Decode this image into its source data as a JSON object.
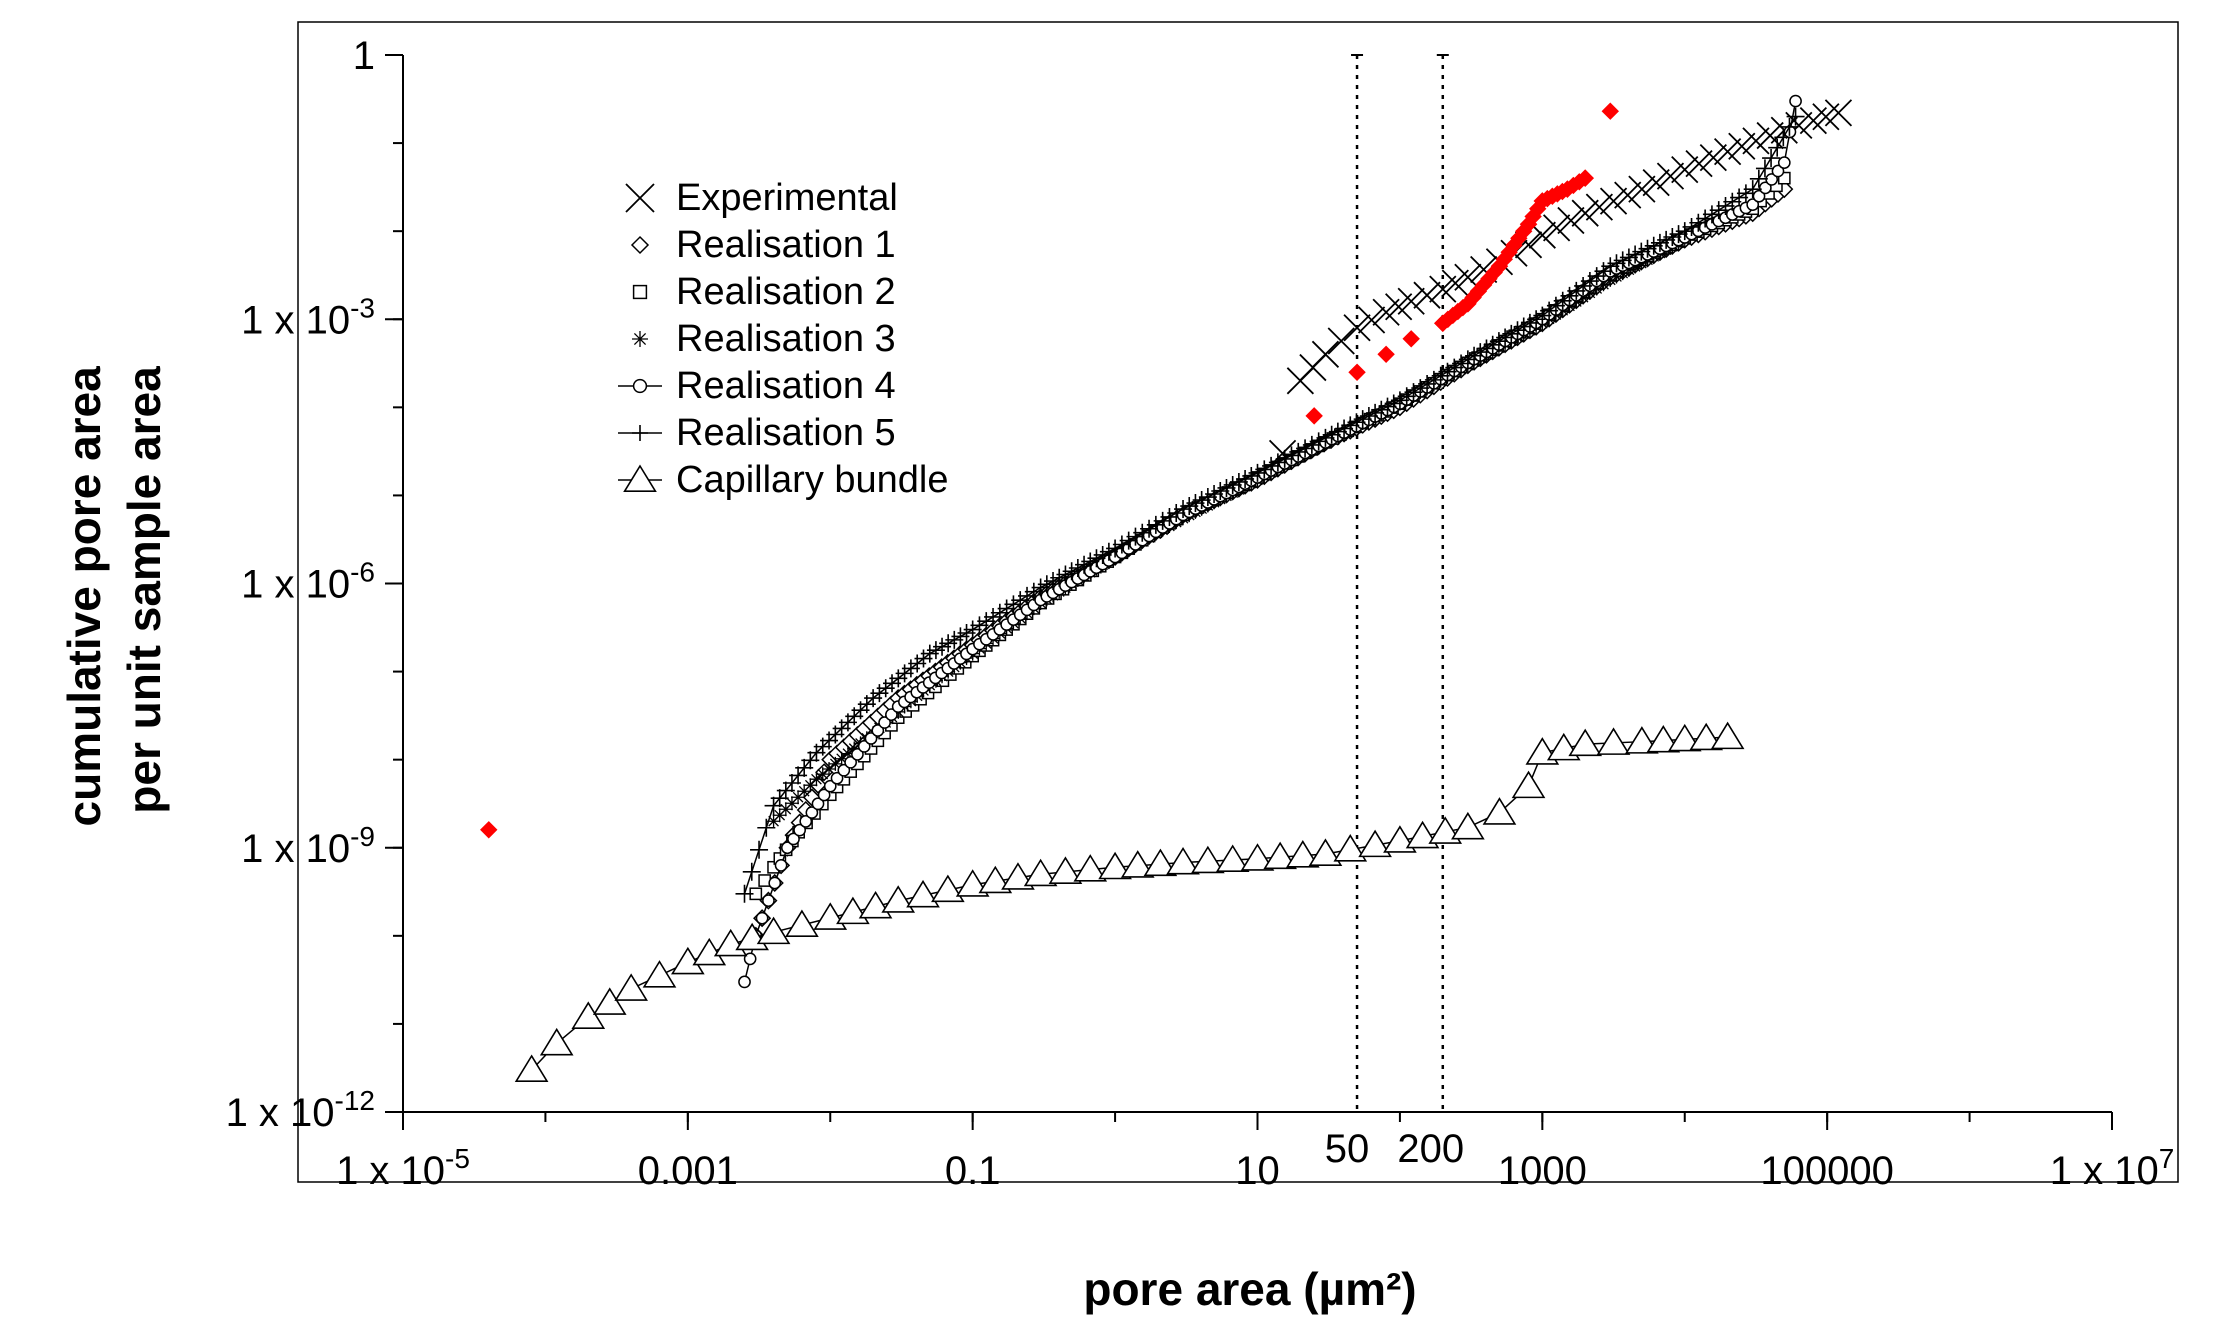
{
  "chart_data": {
    "type": "scatter",
    "title": "",
    "xlabel": "pore area (µm²)",
    "ylabel_lines": [
      "cumulative pore area",
      "per unit sample area"
    ],
    "x_scale": "log",
    "y_scale": "log",
    "xlim": [
      1e-05,
      10000000.0
    ],
    "ylim": [
      1e-12,
      1
    ],
    "grid": false,
    "legend_position": "upper-left",
    "x_ticks": [
      {
        "value": 1e-05,
        "base": "1 x 10",
        "exp": "-5"
      },
      {
        "value": 0.001,
        "label": "0.001"
      },
      {
        "value": 0.1,
        "label": "0.1"
      },
      {
        "value": 10,
        "label": "10"
      },
      {
        "value": 1000,
        "label": "1000"
      },
      {
        "value": 100000,
        "label": "100000"
      },
      {
        "value": 10000000.0,
        "base": "1 x 10",
        "exp": "7"
      }
    ],
    "y_ticks": [
      {
        "value": 1,
        "label": "1"
      },
      {
        "value": 0.001,
        "base": "1 x 10",
        "exp": "-3"
      },
      {
        "value": 1e-06,
        "base": "1 x 10",
        "exp": "-6"
      },
      {
        "value": 1e-09,
        "base": "1 x 10",
        "exp": "-9"
      },
      {
        "value": 1e-12,
        "base": "1 x 10",
        "exp": "-12"
      }
    ],
    "reference_lines": [
      {
        "x": 50,
        "label": "50"
      },
      {
        "x": 200,
        "label": "200"
      }
    ],
    "series": [
      {
        "name": "Experimental",
        "marker": "x",
        "x": [
          15,
          20,
          30,
          50,
          80,
          120,
          200,
          300,
          500,
          800,
          1000,
          2000,
          5000,
          10000,
          20000,
          50000,
          80000,
          120000
        ],
        "y": [
          3e-05,
          0.0002,
          0.0004,
          0.0008,
          0.0012,
          0.0016,
          0.0022,
          0.003,
          0.0045,
          0.007,
          0.009,
          0.016,
          0.03,
          0.05,
          0.08,
          0.14,
          0.18,
          0.22
        ]
      },
      {
        "name": "Realisation 1",
        "marker": "diamond",
        "x": [
          0.003,
          0.005,
          0.01,
          0.03,
          0.1,
          0.3,
          1,
          3,
          10,
          30,
          100,
          300,
          1000,
          3000,
          10000,
          30000,
          50000
        ],
        "y": [
          1e-10,
          1e-09,
          1e-08,
          5e-08,
          2e-07,
          7e-07,
          2e-06,
          6e-06,
          1.5e-05,
          4e-05,
          0.0001,
          0.0003,
          0.0009,
          0.003,
          0.008,
          0.016,
          0.03
        ]
      },
      {
        "name": "Realisation 2",
        "marker": "square",
        "x": [
          0.003,
          0.004,
          0.006,
          0.01,
          0.03,
          0.1,
          0.3,
          1,
          3,
          10,
          30,
          100,
          300,
          1000,
          3000,
          10000,
          30000,
          50000
        ],
        "y": [
          3e-10,
          6e-10,
          1.5e-09,
          4e-09,
          3e-08,
          1.5e-07,
          6e-07,
          2e-06,
          6e-06,
          1.6e-05,
          4e-05,
          0.00011,
          0.00032,
          0.001,
          0.0032,
          0.0085,
          0.018,
          0.04
        ]
      },
      {
        "name": "Realisation 3",
        "marker": "asterisk",
        "x": [
          0.004,
          0.008,
          0.02,
          0.05,
          0.1,
          0.3,
          1,
          3,
          10,
          30,
          100,
          300,
          1000,
          3000,
          10000
        ],
        "y": [
          2e-09,
          6e-09,
          2e-08,
          7e-08,
          1.6e-07,
          6e-07,
          2e-06,
          5.5e-06,
          1.5e-05,
          4e-05,
          0.00011,
          0.0003,
          0.0009,
          0.0028,
          0.008
        ]
      },
      {
        "name": "Realisation 4",
        "marker": "circle-line",
        "x": [
          0.0025,
          0.003,
          0.005,
          0.01,
          0.03,
          0.1,
          0.3,
          1,
          3,
          10,
          30,
          100,
          300,
          1000,
          3000,
          10000,
          30000,
          50000,
          60000
        ],
        "y": [
          3e-11,
          1e-10,
          1e-09,
          5e-09,
          4e-08,
          1.8e-07,
          6.5e-07,
          2e-06,
          6e-06,
          1.6e-05,
          4e-05,
          0.00011,
          0.00032,
          0.001,
          0.0035,
          0.0085,
          0.02,
          0.06,
          0.3
        ]
      },
      {
        "name": "Realisation 5",
        "marker": "plus-line",
        "x": [
          0.0025,
          0.004,
          0.008,
          0.02,
          0.05,
          0.1,
          0.3,
          1,
          3,
          10,
          30,
          100,
          300,
          1000,
          3000,
          10000,
          30000,
          60000
        ],
        "y": [
          3e-10,
          3e-09,
          1.2e-08,
          5e-08,
          1.6e-07,
          3e-07,
          9e-07,
          2.5e-06,
          7e-06,
          1.8e-05,
          4.5e-05,
          0.00012,
          0.00035,
          0.0011,
          0.004,
          0.01,
          0.03,
          0.2
        ]
      },
      {
        "name": "Capillary bundle",
        "marker": "triangle-line",
        "x": [
          8e-05,
          0.00012,
          0.0002,
          0.0004,
          0.001,
          0.002,
          0.004,
          0.01,
          0.03,
          0.1,
          0.3,
          1,
          3,
          10,
          30,
          100,
          300,
          500,
          800,
          1000,
          2000,
          5000,
          10000,
          20000
        ],
        "y": [
          3e-12,
          6e-12,
          1.2e-11,
          2.5e-11,
          5e-11,
          8e-11,
          1.1e-10,
          1.6e-10,
          2.5e-10,
          3.8e-10,
          5e-10,
          6e-10,
          6.8e-10,
          7.5e-10,
          8.5e-10,
          1.2e-09,
          1.7e-09,
          2.5e-09,
          5e-09,
          1.2e-08,
          1.5e-08,
          1.6e-08,
          1.7e-08,
          1.8e-08
        ]
      },
      {
        "name": "",
        "marker": "red-diamond",
        "color": "#ff0000",
        "x": [
          4e-05,
          25,
          50,
          80,
          120,
          200,
          300,
          500,
          800,
          1000,
          1500,
          2000,
          3000
        ],
        "y": [
          1.6e-09,
          8e-05,
          0.00025,
          0.0004,
          0.0006,
          0.0009,
          0.0015,
          0.004,
          0.012,
          0.022,
          0.03,
          0.04,
          0.23
        ]
      }
    ]
  }
}
